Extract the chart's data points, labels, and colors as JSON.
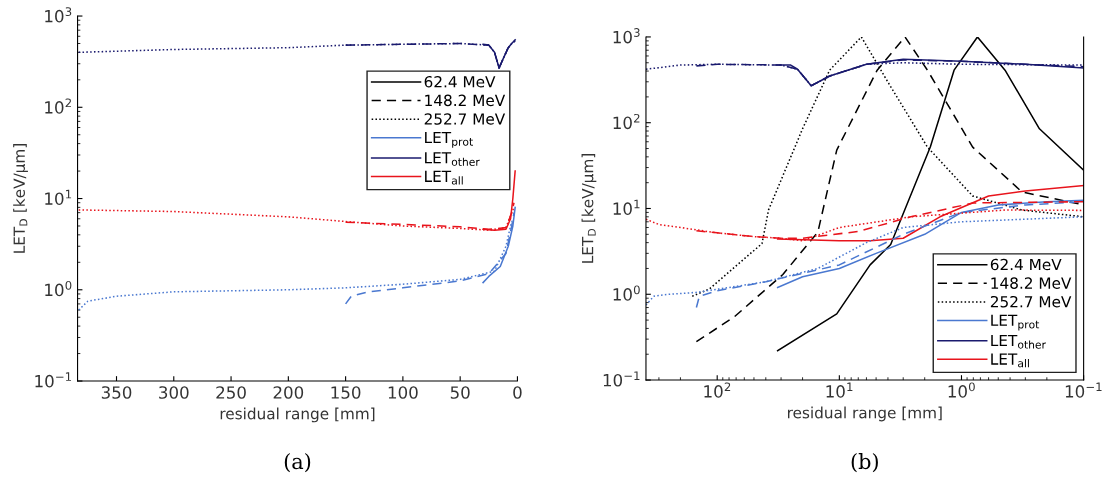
{
  "chart_data": [
    {
      "type": "line",
      "xlabel": "residual range [mm]",
      "ylabel": "LET$_{D}$ [keV/μm]",
      "log": "y",
      "legend": "right",
      "xlim": [
        384,
        0
      ],
      "xticks": [
        350,
        300,
        250,
        200,
        150,
        100,
        50,
        0
      ],
      "ylim": [
        0.1,
        1000
      ],
      "yticks": [
        {
          "value": 0.1,
          "label": "10$^{−1}$"
        },
        {
          "value": 1,
          "label": "10$^{0}$"
        },
        {
          "value": 10,
          "label": "10$^{1}$"
        },
        {
          "value": 100,
          "label": "10$^{2}$"
        },
        {
          "value": 1000,
          "label": "10$^{3}$"
        }
      ],
      "annotations": [
        "(a)"
      ],
      "series": [
        {
          "name": "62.4 MeV",
          "color": "#000000",
          "line_style": "solid"
        },
        {
          "name": "148.2 MeV",
          "color": "#000000",
          "line_style": "dashed"
        },
        {
          "name": "252.7 MeV",
          "color": "#000000",
          "line_style": "dotted"
        },
        {
          "name": "LET$_{prot}$",
          "color": "#4a78d0",
          "line_style": "solid",
          "x": [
            30,
            25,
            15,
            8,
            4,
            2
          ],
          "values": [
            1.2,
            1.4,
            1.8,
            3,
            5,
            8
          ]
        },
        {
          "name": "LET$_{other}$",
          "color": "#1a1a6e",
          "line_style": "solid",
          "x": [
            30,
            25,
            20,
            16,
            12,
            8,
            5,
            2
          ],
          "values": [
            490,
            480,
            400,
            270,
            350,
            450,
            500,
            550
          ]
        },
        {
          "name": "LET$_{all}$",
          "color": "#e8141c",
          "line_style": "solid",
          "x": [
            30,
            20,
            10,
            6,
            4,
            2
          ],
          "values": [
            4.6,
            4.5,
            4.6,
            6,
            10,
            20
          ]
        },
        {
          "color": "#4a78d0",
          "line_style": "dashed",
          "x": [
            150,
            145,
            130,
            100,
            50,
            25,
            10,
            5,
            3
          ],
          "values": [
            0.7,
            0.85,
            0.95,
            1.05,
            1.25,
            1.5,
            2.5,
            5,
            7
          ]
        },
        {
          "color": "#1a1a6e",
          "line_style": "dashed",
          "x": [
            150,
            100,
            50,
            25,
            20,
            16,
            12,
            8,
            5,
            2
          ],
          "values": [
            480,
            490,
            500,
            480,
            400,
            270,
            350,
            450,
            500,
            540
          ]
        },
        {
          "color": "#e8141c",
          "line_style": "dashed",
          "x": [
            150,
            100,
            50,
            25,
            10,
            5,
            3
          ],
          "values": [
            5.5,
            5.2,
            4.9,
            4.6,
            4.8,
            7,
            9
          ]
        },
        {
          "color": "#4a78d0",
          "line_style": "dotted",
          "x": [
            383,
            375,
            350,
            300,
            200,
            150,
            100,
            50,
            20,
            10,
            6,
            4
          ],
          "values": [
            0.6,
            0.75,
            0.85,
            0.95,
            1.0,
            1.05,
            1.15,
            1.3,
            1.6,
            3,
            5,
            6
          ]
        },
        {
          "color": "#1a1a6e",
          "line_style": "dotted",
          "x": [
            383,
            300,
            200,
            150,
            100,
            50,
            25,
            20,
            16,
            12,
            8,
            5,
            2
          ],
          "values": [
            400,
            430,
            450,
            480,
            490,
            500,
            480,
            400,
            270,
            350,
            450,
            500,
            530
          ]
        },
        {
          "color": "#e8141c",
          "line_style": "dotted",
          "x": [
            383,
            300,
            200,
            150,
            100,
            50,
            25,
            10,
            5,
            3
          ],
          "values": [
            7.5,
            7.2,
            6.3,
            5.6,
            5.0,
            4.7,
            4.5,
            4.8,
            7,
            8
          ]
        }
      ]
    },
    {
      "type": "line",
      "xlabel": "residual range [mm]",
      "ylabel": "LET$_{D}$ [keV/μm]",
      "log": "xy",
      "legend": "bottom right",
      "xlim": [
        383,
        0.1
      ],
      "xticks": [
        {
          "value": 100,
          "label": "10$^{2}$"
        },
        {
          "value": 10,
          "label": "10$^{1}$"
        },
        {
          "value": 1,
          "label": "10$^{0}$"
        },
        {
          "value": 0.1,
          "label": "10$^{−1}$"
        }
      ],
      "ylim": [
        0.1,
        1000
      ],
      "yticks": [
        {
          "value": 0.1,
          "label": "10$^{−1}$"
        },
        {
          "value": 1,
          "label": "10$^{0}$"
        },
        {
          "value": 10,
          "label": "10$^{1}$"
        },
        {
          "value": 100,
          "label": "10$^{2}$"
        },
        {
          "value": 1000,
          "label": "10$^{3}$"
        }
      ],
      "annotations": [
        "(b)"
      ],
      "series": [
        {
          "name": "62.4 MeV",
          "color": "#000000",
          "line_style": "solid",
          "x": [
            32,
            10.5,
            5.6,
            3.8,
            1.8,
            1.15,
            0.74,
            0.44,
            0.23,
            0.1
          ],
          "values": [
            0.22,
            0.59,
            2.2,
            3.8,
            52,
            410,
            1000,
            410,
            85,
            28
          ]
        },
        {
          "name": "148.2 MeV",
          "color": "#000000",
          "line_style": "dashed",
          "x": [
            148,
            72,
            29,
            15,
            10.5,
            4.9,
            2.9,
            1.9,
            0.81,
            0.32,
            0.1
          ],
          "values": [
            0.28,
            0.55,
            1.7,
            5.3,
            48,
            410,
            1000,
            410,
            52,
            15.6,
            11
          ]
        },
        {
          "name": "252.7 MeV",
          "color": "#000000",
          "line_style": "dotted",
          "x": [
            160,
            116,
            43,
            38,
            20,
            12,
            6.6,
            4.1,
            1.9,
            0.81,
            0.32,
            0.1
          ],
          "values": [
            0.95,
            1.15,
            3.9,
            9.6,
            85,
            410,
            1000,
            315,
            52,
            14,
            9.6,
            8
          ]
        },
        {
          "name": "LET$_{prot}$",
          "color": "#4a78d0",
          "line_style": "solid",
          "x": [
            32,
            20,
            10,
            5,
            2,
            1,
            0.5,
            0.2,
            0.1
          ],
          "values": [
            1.2,
            1.6,
            2,
            3,
            5,
            9,
            11,
            12,
            12.5
          ]
        },
        {
          "name": "LET$_{other}$",
          "color": "#1a1a6e",
          "line_style": "solid",
          "x": [
            32,
            25,
            22,
            17,
            12,
            6,
            3,
            1,
            0.3,
            0.1
          ],
          "values": [
            470,
            470,
            420,
            270,
            350,
            480,
            550,
            520,
            480,
            435
          ]
        },
        {
          "name": "LET$_{all}$",
          "color": "#e8141c",
          "line_style": "solid",
          "x": [
            32,
            10,
            5.6,
            3,
            1.5,
            0.6,
            0.3,
            0.1
          ],
          "values": [
            4.4,
            4.2,
            4.2,
            4.5,
            8,
            14,
            16,
            18.5
          ]
        },
        {
          "color": "#4a78d0",
          "line_style": "dashed",
          "x": [
            148,
            140,
            100,
            40,
            10,
            3,
            1,
            0.3,
            0.1
          ],
          "values": [
            0.7,
            0.95,
            1.1,
            1.4,
            2.2,
            5,
            9,
            11,
            12
          ]
        },
        {
          "color": "#1a1a6e",
          "line_style": "dashed",
          "x": [
            148,
            100,
            30,
            22,
            17,
            12,
            6,
            3,
            1,
            0.3,
            0.1
          ],
          "values": [
            460,
            480,
            470,
            420,
            270,
            350,
            480,
            540,
            520,
            480,
            450
          ]
        },
        {
          "color": "#e8141c",
          "line_style": "dashed",
          "x": [
            148,
            100,
            50,
            30,
            20,
            7,
            2.6,
            0.8,
            0.1
          ],
          "values": [
            5.5,
            5.2,
            4.7,
            4.5,
            4.5,
            5.4,
            8,
            11.6,
            12
          ]
        },
        {
          "color": "#4a78d0",
          "line_style": "dotted",
          "x": [
            383,
            330,
            250,
            150,
            80,
            40,
            15,
            6,
            3,
            1,
            0.1
          ],
          "values": [
            0.75,
            0.95,
            1.0,
            1.05,
            1.2,
            1.4,
            2,
            4,
            6,
            7,
            8
          ]
        },
        {
          "color": "#1a1a6e",
          "line_style": "dotted",
          "x": [
            383,
            200,
            100,
            30,
            22,
            17,
            12,
            6,
            3,
            1,
            0.1
          ],
          "values": [
            420,
            470,
            480,
            470,
            420,
            270,
            350,
            480,
            500,
            480,
            470
          ]
        },
        {
          "color": "#e8141c",
          "line_style": "dotted",
          "x": [
            383,
            300,
            200,
            100,
            50,
            30,
            20,
            10,
            2.6,
            0.44,
            0.1
          ],
          "values": [
            7.5,
            6.5,
            6,
            5.2,
            4.7,
            4.5,
            4.2,
            6,
            8,
            9.6,
            9.5
          ]
        }
      ]
    }
  ]
}
